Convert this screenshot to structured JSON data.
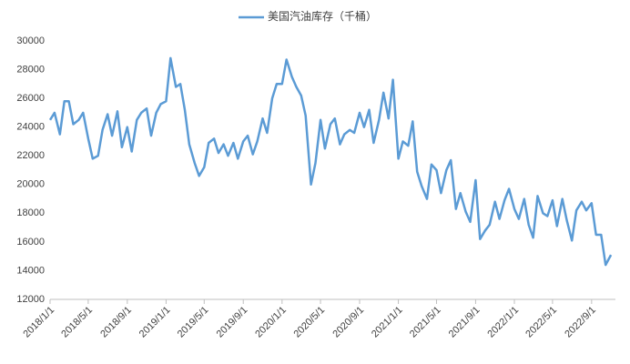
{
  "chart_data": {
    "type": "line",
    "series": [
      {
        "name": "美国汽油库存（千桶）",
        "color": "#5b9bd5",
        "values": [
          24500,
          25000,
          23500,
          25800,
          25800,
          24200,
          24500,
          25000,
          23200,
          21800,
          22000,
          23800,
          24900,
          23400,
          25100,
          22600,
          24000,
          22300,
          24500,
          25000,
          25300,
          23400,
          25000,
          25600,
          25800,
          28800,
          26800,
          27000,
          25200,
          22800,
          21500,
          20600,
          21200,
          22900,
          23200,
          22200,
          22800,
          22000,
          22900,
          21800,
          23000,
          23400,
          22100,
          23000,
          24600,
          23600,
          26000,
          27000,
          27000,
          28700,
          27500,
          26800,
          26200,
          24800,
          20000,
          21500,
          24500,
          22500,
          24200,
          24600,
          22800,
          23500,
          23800,
          23600,
          25000,
          24000,
          25200,
          22900,
          24500,
          26400,
          24600,
          27300,
          21800,
          23000,
          22700,
          24400,
          20900,
          19900,
          19000,
          21400,
          21000,
          19400,
          21000,
          21700,
          18300,
          19400,
          18100,
          17400,
          20300,
          16200,
          16800,
          17200,
          18800,
          17600,
          18900,
          19700,
          18300,
          17600,
          19000,
          17200,
          16300,
          19200,
          18000,
          17800,
          18900,
          17100,
          19000,
          17500,
          16100,
          18200,
          18800,
          18200,
          18700,
          16500,
          16500,
          14400,
          15100
        ]
      }
    ],
    "x": [
      "2018/1/1",
      "2018/1/15",
      "2018/2/1",
      "2018/2/15",
      "2018/3/1",
      "2018/3/15",
      "2018/4/1",
      "2018/4/15",
      "2018/5/1",
      "2018/5/15",
      "2018/6/1",
      "2018/6/15",
      "2018/7/1",
      "2018/7/15",
      "2018/8/1",
      "2018/8/15",
      "2018/9/1",
      "2018/9/15",
      "2018/10/1",
      "2018/10/15",
      "2018/11/1",
      "2018/11/15",
      "2018/12/1",
      "2018/12/15",
      "2019/1/1",
      "2019/1/15",
      "2019/2/1",
      "2019/2/15",
      "2019/3/1",
      "2019/3/15",
      "2019/4/1",
      "2019/4/15",
      "2019/5/1",
      "2019/5/15",
      "2019/6/1",
      "2019/6/15",
      "2019/7/1",
      "2019/7/15",
      "2019/8/1",
      "2019/8/15",
      "2019/9/1",
      "2019/9/15",
      "2019/10/1",
      "2019/10/15",
      "2019/11/1",
      "2019/11/15",
      "2019/12/1",
      "2019/12/15",
      "2020/1/1",
      "2020/1/15",
      "2020/2/1",
      "2020/2/15",
      "2020/3/1",
      "2020/3/15",
      "2020/4/1",
      "2020/4/15",
      "2020/5/1",
      "2020/5/15",
      "2020/6/1",
      "2020/6/15",
      "2020/7/1",
      "2020/7/15",
      "2020/8/1",
      "2020/8/15",
      "2020/9/1",
      "2020/9/15",
      "2020/10/1",
      "2020/10/15",
      "2020/11/1",
      "2020/11/15",
      "2020/12/1",
      "2020/12/15",
      "2021/1/1",
      "2021/1/15",
      "2021/2/1",
      "2021/2/15",
      "2021/3/1",
      "2021/3/15",
      "2021/4/1",
      "2021/4/15",
      "2021/5/1",
      "2021/5/15",
      "2021/6/1",
      "2021/6/15",
      "2021/7/1",
      "2021/7/15",
      "2021/8/1",
      "2021/8/15",
      "2021/9/1",
      "2021/9/15",
      "2021/10/1",
      "2021/10/15",
      "2021/11/1",
      "2021/11/15",
      "2021/12/1",
      "2021/12/15",
      "2022/1/1",
      "2022/1/15",
      "2022/2/1",
      "2022/2/15",
      "2022/3/1",
      "2022/3/15",
      "2022/4/1",
      "2022/4/15",
      "2022/5/1",
      "2022/5/15",
      "2022/6/1",
      "2022/6/15",
      "2022/7/1",
      "2022/7/15",
      "2022/8/1",
      "2022/8/15",
      "2022/9/1",
      "2022/9/15",
      "2022/10/1",
      "2022/10/15",
      "2022/11/1"
    ],
    "xlim": [
      "2018/1/1",
      "2022/11/15"
    ],
    "xticks": [
      "2018/1/1",
      "2018/5/1",
      "2018/9/1",
      "2019/1/1",
      "2019/5/1",
      "2019/9/1",
      "2020/1/1",
      "2020/5/1",
      "2020/9/1",
      "2021/1/1",
      "2021/5/1",
      "2021/9/1",
      "2022/1/1",
      "2022/5/1",
      "2022/9/1"
    ],
    "ylim": [
      12000,
      30000
    ],
    "yticks": [
      12000,
      14000,
      16000,
      18000,
      20000,
      22000,
      24000,
      26000,
      28000,
      30000
    ],
    "grid": false,
    "legend": "top"
  }
}
